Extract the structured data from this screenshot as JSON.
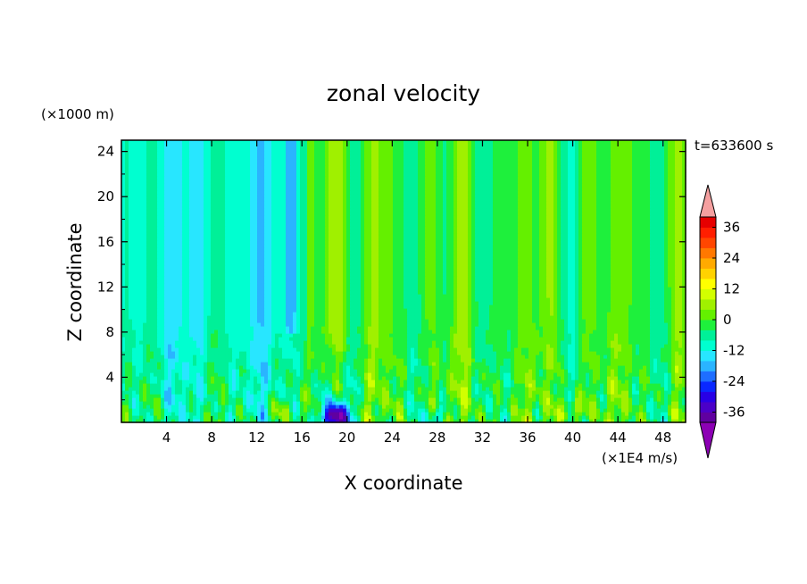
{
  "chart_data": {
    "type": "heatmap",
    "title": "zonal velocity",
    "xlabel": "X coordinate",
    "ylabel": "Z coordinate",
    "y_unit_label": "(×1000 m)",
    "x_unit_label": "(×1E4 m/s)",
    "time_label": "t=633600 s",
    "xlim": [
      0,
      50
    ],
    "ylim": [
      0,
      25
    ],
    "x_ticks": [
      4,
      8,
      12,
      16,
      20,
      24,
      28,
      32,
      36,
      40,
      44,
      48
    ],
    "y_ticks": [
      4,
      8,
      12,
      16,
      20,
      24
    ],
    "colorbar": {
      "levels": [
        -40,
        -36,
        -32,
        -28,
        -24,
        -20,
        -16,
        -12,
        -8,
        -4,
        0,
        4,
        8,
        12,
        16,
        20,
        24,
        28,
        32,
        36,
        40
      ],
      "tick_labels": [
        "-36",
        "-24",
        "-12",
        "0",
        "12",
        "24",
        "36"
      ],
      "tick_values": [
        -36,
        -24,
        -12,
        0,
        12,
        24,
        36
      ],
      "colors": [
        "#6000a0",
        "#4b00c8",
        "#2800e6",
        "#0a28ff",
        "#1e6eff",
        "#2ab4ff",
        "#28e6ff",
        "#00ffd0",
        "#00f098",
        "#1ef03c",
        "#64f000",
        "#a0f000",
        "#d2ff00",
        "#ffff00",
        "#ffd200",
        "#ffaa00",
        "#ff7800",
        "#ff4600",
        "#ff1e00",
        "#e60000"
      ],
      "under_color": "#8c00b4",
      "over_color": "#f5a0a0"
    },
    "field_description": "zonal velocity field varying in X and Z; negative core near x 18-20 low levels, positive yellow plume near x 17-20 aloft",
    "features": [
      {
        "x": 19,
        "z": 1,
        "value": -36
      },
      {
        "x": 15,
        "z": 20,
        "value": -20
      },
      {
        "x": 19,
        "z": 18,
        "value": 12
      },
      {
        "x": 14,
        "z": 1,
        "value": 16
      },
      {
        "x": 40,
        "z": 1,
        "value": 12
      },
      {
        "x": 44,
        "z": 20,
        "value": 8
      }
    ]
  }
}
